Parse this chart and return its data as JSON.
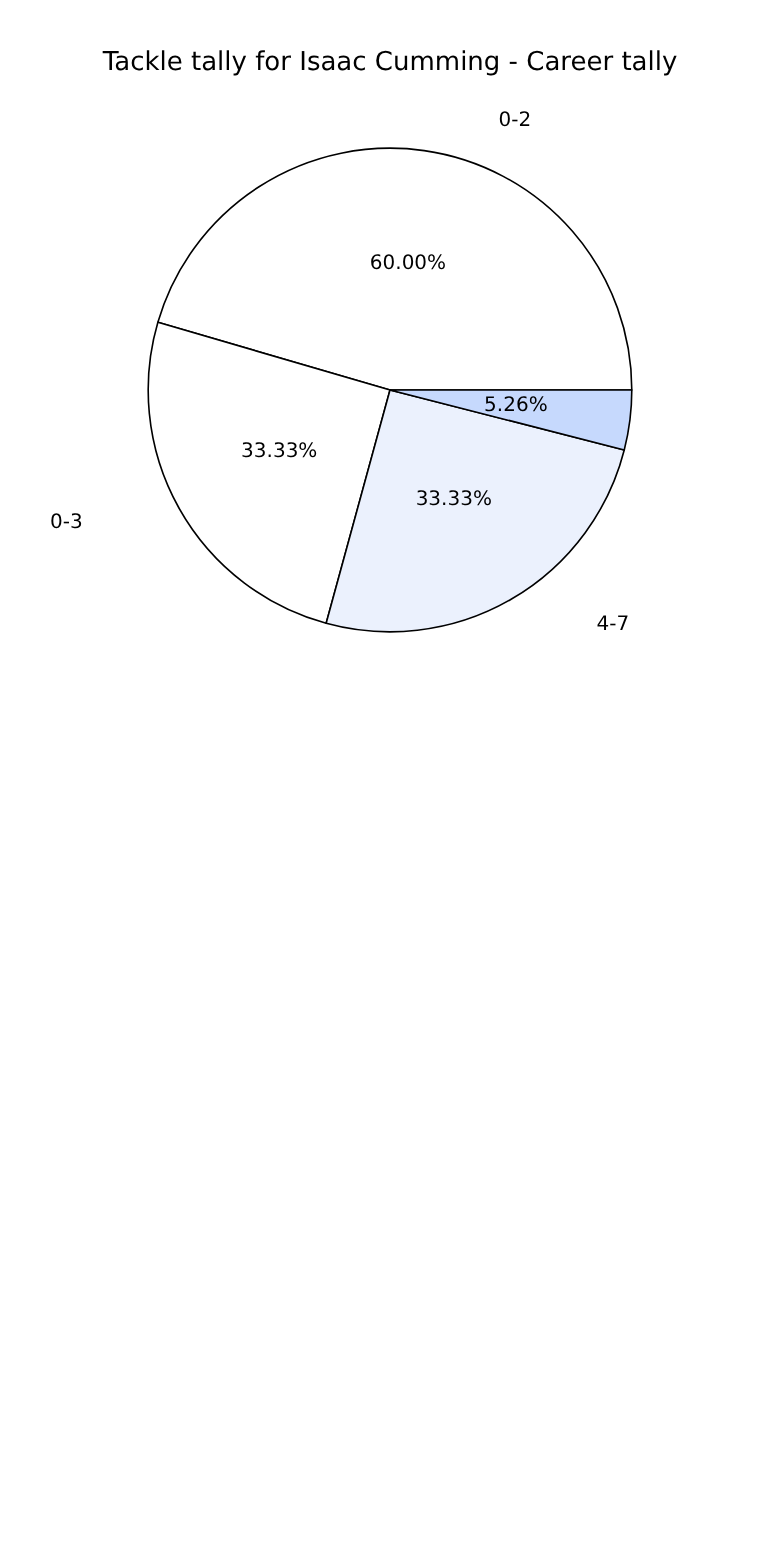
{
  "chart_data": {
    "type": "pie",
    "title": "Tackle tally for Isaac Cumming - Career tally",
    "categories": [
      "0-2",
      "0-3",
      "4-7",
      null
    ],
    "values": [
      60,
      33.33,
      33.33,
      5.26
    ],
    "value_labels": [
      "60.00%",
      "33.33%",
      "33.33%",
      "5.26%"
    ],
    "colors": [
      "#ffffff",
      "#ffffff",
      "#ebf1fd",
      "#c6d9fd"
    ],
    "legend": false
  }
}
